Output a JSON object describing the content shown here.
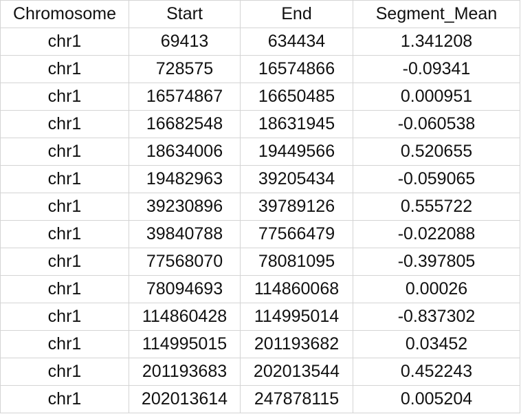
{
  "table": {
    "headers": [
      "Chromosome",
      "Start",
      "End",
      "Segment_Mean"
    ],
    "rows": [
      [
        "chr1",
        "69413",
        "634434",
        "1.341208"
      ],
      [
        "chr1",
        "728575",
        "16574866",
        "-0.09341"
      ],
      [
        "chr1",
        "16574867",
        "16650485",
        "0.000951"
      ],
      [
        "chr1",
        "16682548",
        "18631945",
        "-0.060538"
      ],
      [
        "chr1",
        "18634006",
        "19449566",
        "0.520655"
      ],
      [
        "chr1",
        "19482963",
        "39205434",
        "-0.059065"
      ],
      [
        "chr1",
        "39230896",
        "39789126",
        "0.555722"
      ],
      [
        "chr1",
        "39840788",
        "77566479",
        "-0.022088"
      ],
      [
        "chr1",
        "77568070",
        "78081095",
        "-0.397805"
      ],
      [
        "chr1",
        "78094693",
        "114860068",
        "0.00026"
      ],
      [
        "chr1",
        "114860428",
        "114995014",
        "-0.837302"
      ],
      [
        "chr1",
        "114995015",
        "201193682",
        "0.03452"
      ],
      [
        "chr1",
        "201193683",
        "202013544",
        "0.452243"
      ],
      [
        "chr1",
        "202013614",
        "247878115",
        "0.005204"
      ]
    ]
  }
}
